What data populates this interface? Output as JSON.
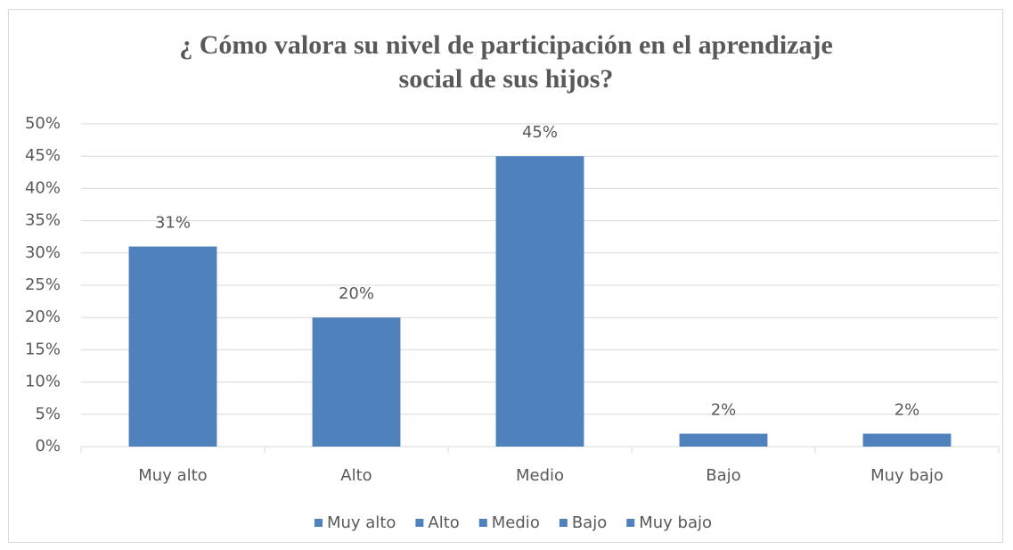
{
  "chart_data": {
    "type": "bar",
    "title": "¿ Cómo valora su nivel de participación en el aprendizaje social de sus hijos?",
    "categories": [
      "Muy alto",
      "Alto",
      "Medio",
      "Bajo",
      "Muy bajo"
    ],
    "values": [
      31,
      20,
      45,
      2,
      2
    ],
    "value_labels": [
      "31%",
      "20%",
      "45%",
      "2%",
      "2%"
    ],
    "color": "#4f81bd",
    "ylim": [
      0,
      50
    ],
    "yticks": [
      {
        "value": 0,
        "label": "0%"
      },
      {
        "value": 5,
        "label": "5%"
      },
      {
        "value": 10,
        "label": "10%"
      },
      {
        "value": 15,
        "label": "15%"
      },
      {
        "value": 20,
        "label": "20%"
      },
      {
        "value": 25,
        "label": "25%"
      },
      {
        "value": 30,
        "label": "30%"
      },
      {
        "value": 35,
        "label": "35%"
      },
      {
        "value": 40,
        "label": "40%"
      },
      {
        "value": 45,
        "label": "45%"
      },
      {
        "value": 50,
        "label": "50%"
      }
    ],
    "grid": true,
    "legend": "bottom"
  }
}
